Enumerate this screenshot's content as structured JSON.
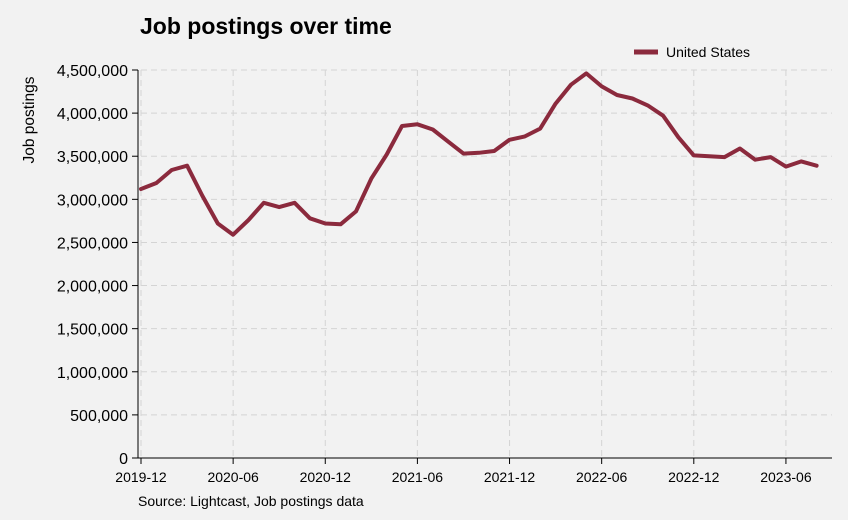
{
  "chart_data": {
    "type": "line",
    "title": "Job postings over time",
    "xlabel": "",
    "ylabel": "Job postings",
    "source": "Source: Lightcast, Job postings data",
    "legend": {
      "position": "top-right"
    },
    "grid": true,
    "ylim": [
      0,
      4500000
    ],
    "y_ticks": [
      0,
      500000,
      1000000,
      1500000,
      2000000,
      2500000,
      3000000,
      3500000,
      4000000,
      4500000
    ],
    "y_tick_labels": [
      "0",
      "500,000",
      "1,000,000",
      "1,500,000",
      "2,000,000",
      "2,500,000",
      "3,000,000",
      "3,500,000",
      "4,000,000",
      "4,500,000"
    ],
    "xlim": [
      "2019-12",
      "2023-09"
    ],
    "x_ticks": [
      "2019-12",
      "2020-06",
      "2020-12",
      "2021-06",
      "2021-12",
      "2022-06",
      "2022-12",
      "2023-06"
    ],
    "x": [
      "2019-12",
      "2020-01",
      "2020-02",
      "2020-03",
      "2020-04",
      "2020-05",
      "2020-06",
      "2020-07",
      "2020-08",
      "2020-09",
      "2020-10",
      "2020-11",
      "2020-12",
      "2021-01",
      "2021-02",
      "2021-03",
      "2021-04",
      "2021-05",
      "2021-06",
      "2021-07",
      "2021-08",
      "2021-09",
      "2021-10",
      "2021-11",
      "2021-12",
      "2022-01",
      "2022-02",
      "2022-03",
      "2022-04",
      "2022-05",
      "2022-06",
      "2022-07",
      "2022-08",
      "2022-09",
      "2022-10",
      "2022-11",
      "2022-12",
      "2023-01",
      "2023-02",
      "2023-03",
      "2023-04",
      "2023-05",
      "2023-06",
      "2023-07",
      "2023-08"
    ],
    "series": [
      {
        "name": "United States",
        "color": "#8b2a3d",
        "values": [
          3120000,
          3190000,
          3340000,
          3390000,
          3040000,
          2720000,
          2590000,
          2760000,
          2960000,
          2910000,
          2960000,
          2780000,
          2720000,
          2710000,
          2860000,
          3240000,
          3520000,
          3850000,
          3870000,
          3810000,
          3670000,
          3530000,
          3540000,
          3560000,
          3690000,
          3730000,
          3820000,
          4110000,
          4330000,
          4460000,
          4310000,
          4210000,
          4170000,
          4090000,
          3970000,
          3720000,
          3510000,
          3500000,
          3490000,
          3590000,
          3460000,
          3490000,
          3380000,
          3440000,
          3390000
        ]
      }
    ]
  }
}
